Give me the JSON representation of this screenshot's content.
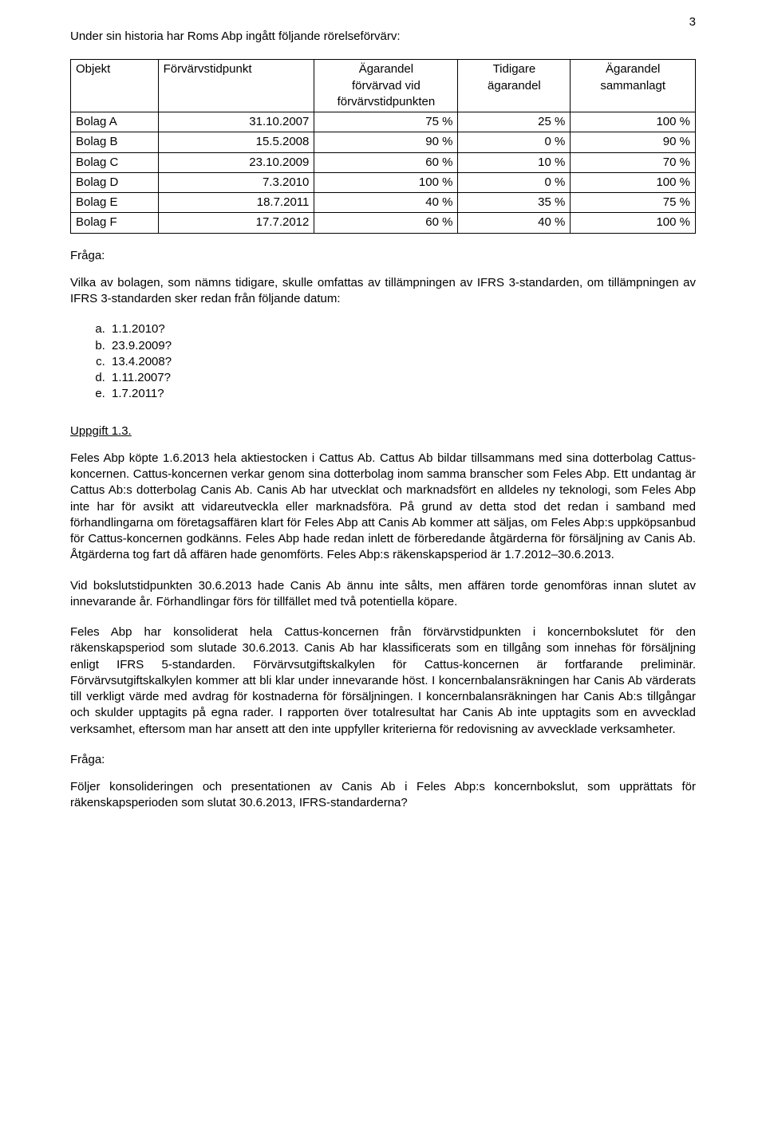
{
  "page_number": "3",
  "intro_sentence": "Under sin historia har Roms Abp ingått följande rörelseförvärv:",
  "table": {
    "columns": {
      "objekt": "Objekt",
      "forvarv": "Förvärvstidpunkt",
      "agarandel_line1": "Ägarandel",
      "agarandel_line2": "förvärvad vid",
      "agarandel_line3": "förvärvstidpunkten",
      "tidigare_line1": "Tidigare",
      "tidigare_line2": "ägarandel",
      "sammanlagt_line1": "Ägarandel",
      "sammanlagt_line2": "sammanlagt"
    },
    "rows": [
      {
        "objekt": "Bolag A",
        "tid": "31.10.2007",
        "forv": "75 %",
        "tidigare": "25 %",
        "samman": "100 %"
      },
      {
        "objekt": "Bolag B",
        "tid": "15.5.2008",
        "forv": "90 %",
        "tidigare": "0 %",
        "samman": "90 %"
      },
      {
        "objekt": "Bolag C",
        "tid": "23.10.2009",
        "forv": "60 %",
        "tidigare": "10 %",
        "samman": "70 %"
      },
      {
        "objekt": "Bolag D",
        "tid": "7.3.2010",
        "forv": "100 %",
        "tidigare": "0 %",
        "samman": "100 %"
      },
      {
        "objekt": "Bolag E",
        "tid": "18.7.2011",
        "forv": "40 %",
        "tidigare": "35 %",
        "samman": "75 %"
      },
      {
        "objekt": "Bolag F",
        "tid": "17.7.2012",
        "forv": "60 %",
        "tidigare": "40 %",
        "samman": "100 %"
      }
    ]
  },
  "question_label_1": "Fråga:",
  "question1_text": "Vilka av bolagen, som nämns tidigare, skulle omfattas av tillämpningen av IFRS 3-standarden, om tillämpningen av IFRS 3-standarden sker redan från följande datum:",
  "options": [
    "1.1.2010?",
    "23.9.2009?",
    "13.4.2008?",
    "1.11.2007?",
    "1.7.2011?"
  ],
  "uppgift_heading": "Uppgift 1.3.",
  "para1": "Feles Abp köpte 1.6.2013 hela aktiestocken i Cattus Ab. Cattus Ab bildar tillsammans med sina dotterbolag Cattus-koncernen. Cattus-koncernen verkar genom sina dotterbolag inom samma branscher som Feles Abp. Ett undantag är Cattus Ab:s dotterbolag Canis Ab. Canis Ab har utvecklat och marknadsfört en alldeles ny teknologi, som Feles Abp inte har för avsikt att vidareutveckla eller marknadsföra. På grund av detta stod det redan i samband med förhandlingarna om företagsaffären klart för Feles Abp att Canis Ab kommer att säljas, om Feles Abp:s uppköpsanbud för Cattus-koncernen godkänns. Feles Abp hade redan inlett de förberedande åtgärderna för försäljning av Canis Ab. Åtgärderna tog fart då affären hade genomförts. Feles Abp:s räkenskapsperiod är 1.7.2012–30.6.2013.",
  "para2": "Vid bokslutstidpunkten 30.6.2013 hade Canis Ab ännu inte sålts, men affären torde genomföras innan slutet av innevarande år. Förhandlingar förs för tillfället med två potentiella köpare.",
  "para3": "Feles Abp har konsoliderat hela Cattus-koncernen från förvärvstidpunkten i koncernbokslutet för den räkenskapsperiod som slutade 30.6.2013. Canis Ab har klassificerats som en tillgång som innehas för försäljning enligt IFRS 5-standarden. Förvärvsutgiftskalkylen för Cattus-koncernen är fortfarande preliminär. Förvärvsutgiftskalkylen kommer att bli klar under innevarande höst. I koncernbalansräkningen har Canis Ab värderats till verkligt värde med avdrag för kostnaderna för försäljningen. I koncernbalansräkningen har Canis Ab:s tillgångar och skulder upptagits på egna rader. I rapporten över totalresultat har Canis Ab inte upptagits som en avvecklad verksamhet, eftersom man har ansett att den inte uppfyller kriterierna för redovisning av avvecklade verksamheter.",
  "question_label_2": "Fråga:",
  "question2_text": "Följer konsolideringen och presentationen av Canis Ab i Feles Abp:s koncernbokslut, som upprättats för räkenskapsperioden som slutat 30.6.2013, IFRS-standarderna?"
}
